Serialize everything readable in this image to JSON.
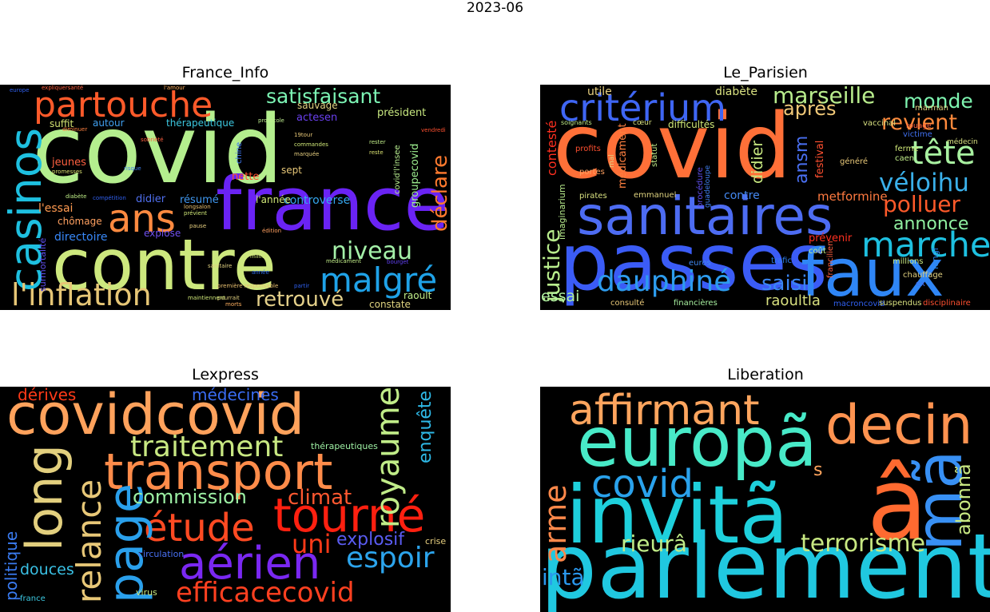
{
  "figure_title": "2023-06",
  "panels": [
    {
      "title": "France_Info",
      "words": [
        {
          "t": "covid",
          "c": "#b4ee8e"
        },
        {
          "t": "contre",
          "c": "#cde87e"
        },
        {
          "t": "france",
          "c": "#6a23f4"
        },
        {
          "t": "partouche",
          "c": "#ff5a2a"
        },
        {
          "t": "casinos",
          "c": "#1ec0e0"
        },
        {
          "t": "ans",
          "c": "#ff8a40"
        },
        {
          "t": "l'inflation",
          "c": "#e6c676"
        },
        {
          "t": "malgré",
          "c": "#1fa2e8"
        },
        {
          "t": "satisfaisant",
          "c": "#7cf4b4"
        },
        {
          "t": "niveau",
          "c": "#a4f0a8"
        },
        {
          "t": "retrouvé",
          "c": "#e4d08a"
        },
        {
          "t": "déclare",
          "c": "#ff7a2e"
        },
        {
          "t": "l'essai",
          "c": "#ff9a50"
        },
        {
          "t": "directoire",
          "c": "#3888f8"
        },
        {
          "t": "surmortalité",
          "c": "#6050f0"
        },
        {
          "t": "groupecovid",
          "c": "#9ef090"
        },
        {
          "t": "président",
          "c": "#c8e880"
        },
        {
          "t": "controverse",
          "c": "#36a8f0"
        },
        {
          "t": "chômage",
          "c": "#ffa060"
        },
        {
          "t": "jeunes",
          "c": "#ff6040"
        },
        {
          "t": "suffit",
          "c": "#d0e070"
        },
        {
          "t": "autour",
          "c": "#40a0f0"
        },
        {
          "t": "thérapeutique",
          "c": "#3cc8e0"
        },
        {
          "t": "actesen",
          "c": "#6a40f0"
        },
        {
          "t": "sauvage",
          "c": "#e0d080"
        },
        {
          "t": "nette",
          "c": "#ff5030"
        },
        {
          "t": "sept",
          "c": "#e8c878"
        },
        {
          "t": "résumé",
          "c": "#4098f0"
        },
        {
          "t": "didier",
          "c": "#5070f0"
        },
        {
          "t": "l'année",
          "c": "#d0e878"
        },
        {
          "t": "covid'l'insee",
          "c": "#b8ee90"
        },
        {
          "t": "chine",
          "c": "#4078f0"
        },
        {
          "t": "raoult",
          "c": "#c0ec88"
        },
        {
          "t": "constate",
          "c": "#e0d480"
        },
        {
          "t": "explose",
          "c": "#7050f0"
        },
        {
          "t": "europe",
          "c": "#3060f0"
        },
        {
          "t": "expliquersanté",
          "c": "#ff6040"
        },
        {
          "t": "l'amour",
          "c": "#ffb060"
        },
        {
          "t": "protocole",
          "c": "#c0f090"
        },
        {
          "t": "19tour",
          "c": "#e8c878"
        },
        {
          "t": "commandes",
          "c": "#d0e878"
        },
        {
          "t": "marquée",
          "c": "#e8d080"
        },
        {
          "t": "promesses",
          "c": "#d8e070"
        },
        {
          "t": "risque",
          "c": "#4080f0"
        },
        {
          "t": "diminuer",
          "c": "#ff8040"
        },
        {
          "t": "diabète",
          "c": "#c0f088"
        },
        {
          "t": "compétition",
          "c": "#3060f0"
        },
        {
          "t": "longsalon",
          "c": "#e8c070"
        },
        {
          "t": "prévient",
          "c": "#d0e878"
        },
        {
          "t": "pause",
          "c": "#e8d080"
        },
        {
          "t": "édition",
          "c": "#ffa060"
        },
        {
          "t": "millier",
          "c": "#d0e878"
        },
        {
          "t": "médicament",
          "c": "#c0ec88"
        },
        {
          "t": "bourget",
          "c": "#6040f0"
        },
        {
          "t": "année",
          "c": "#3070f0"
        },
        {
          "t": "sanitaire",
          "c": "#e0d080"
        },
        {
          "t": "première responsable",
          "c": "#e8c070"
        },
        {
          "t": "partir",
          "c": "#3060f0"
        },
        {
          "t": "pourrait",
          "c": "#e0d080"
        },
        {
          "t": "morts",
          "c": "#ffb060"
        },
        {
          "t": "sobriété",
          "c": "#ff6040"
        },
        {
          "t": "maintiennent",
          "c": "#d0e878"
        },
        {
          "t": "rester",
          "c": "#c0ec88"
        },
        {
          "t": "vendredi",
          "c": "#ff5030"
        },
        {
          "t": "reste",
          "c": "#d8e070"
        }
      ]
    },
    {
      "title": "Le_Parisien",
      "words": [
        {
          "t": "covid",
          "c": "#ff7038"
        },
        {
          "t": "passes",
          "c": "#3b5cf6"
        },
        {
          "t": "sanitaires",
          "c": "#4d6cf2"
        },
        {
          "t": "faux",
          "c": "#2f86f6"
        },
        {
          "t": "critérium",
          "c": "#3f66f4"
        },
        {
          "t": "dauphiné",
          "c": "#2d9cee"
        },
        {
          "t": "marche",
          "c": "#1ec0e0"
        },
        {
          "t": "tête",
          "c": "#a8f0a0"
        },
        {
          "t": "véloihu",
          "c": "#3ab0ea"
        },
        {
          "t": "polluer",
          "c": "#ff5a2a"
        },
        {
          "t": "revient",
          "c": "#ff8a3c"
        },
        {
          "t": "monde",
          "c": "#7ef4b0"
        },
        {
          "t": "marseille",
          "c": "#b8ec8c"
        },
        {
          "t": "justice",
          "c": "#b8ec8c"
        },
        {
          "t": "annonce",
          "c": "#90f0a0"
        },
        {
          "t": "ansm",
          "c": "#4a70f2"
        },
        {
          "t": "après",
          "c": "#f0c878"
        },
        {
          "t": "didier",
          "c": "#c8e880"
        },
        {
          "t": "saisi",
          "c": "#3a86f4"
        },
        {
          "t": "raoultla",
          "c": "#d8e080"
        },
        {
          "t": "essai",
          "c": "#b0f0a0"
        },
        {
          "t": "contesté",
          "c": "#ff3020"
        },
        {
          "t": "utile",
          "c": "#e8d080"
        },
        {
          "t": "diabète",
          "c": "#d8e080"
        },
        {
          "t": "metformine",
          "c": "#ff7a40"
        },
        {
          "t": "contre",
          "c": "#4488f0"
        },
        {
          "t": "festival",
          "c": "#ff5030"
        },
        {
          "t": "médicament",
          "c": "#ff8040"
        },
        {
          "t": "prévenir",
          "c": "#ff3020"
        },
        {
          "t": "difficultés",
          "c": "#d0e878"
        },
        {
          "t": "longl",
          "c": "#2c8af0"
        },
        {
          "t": "consulté",
          "c": "#e8c878"
        },
        {
          "t": "financières",
          "c": "#a8f0a0"
        },
        {
          "t": "macroncovid",
          "c": "#3060f0"
        },
        {
          "t": "suspendus",
          "c": "#d8e080"
        },
        {
          "t": "disciplinaire",
          "c": "#ff5030"
        },
        {
          "t": "imaginarium",
          "c": "#b8ec8c"
        },
        {
          "t": "pirates",
          "c": "#d8e080"
        },
        {
          "t": "emmanuel",
          "c": "#e0d480"
        },
        {
          "t": "euros",
          "c": "#4088f0"
        },
        {
          "t": "trafic",
          "c": "#3080f0"
        },
        {
          "t": "coût",
          "c": "#c0ec88"
        },
        {
          "t": "millions",
          "c": "#c8e880"
        },
        {
          "t": "chauffage",
          "c": "#e0d080"
        },
        {
          "t": "procédure",
          "c": "#6050f0"
        },
        {
          "t": "francilien",
          "c": "#ff6040"
        },
        {
          "t": "statut",
          "c": "#c0ec88"
        },
        {
          "t": "portes",
          "c": "#ffa060"
        },
        {
          "t": "profits",
          "c": "#ff5030"
        },
        {
          "t": "vaccinal",
          "c": "#d8e080"
        },
        {
          "t": "victime",
          "c": "#4070f0"
        },
        {
          "t": "soignants",
          "c": "#c0ec88"
        },
        {
          "t": "médecin",
          "c": "#d8e080"
        },
        {
          "t": "caen",
          "c": "#c0ec88"
        },
        {
          "t": "ferme",
          "c": "#d0e878"
        },
        {
          "t": "rouage",
          "c": "#ff6040"
        },
        {
          "t": "généré",
          "c": "#e8c878"
        },
        {
          "t": "guadeloupe",
          "c": "#4080f0"
        },
        {
          "t": "marman",
          "c": "#e0d080"
        },
        {
          "t": "ex",
          "c": "#4070f0"
        },
        {
          "t": "mal",
          "c": "#e0d080"
        },
        {
          "t": "cœur",
          "c": "#d8e080"
        }
      ]
    },
    {
      "title": "Lexpress",
      "words": [
        {
          "t": "covidcovid",
          "c": "#ffa25c"
        },
        {
          "t": "transport",
          "c": "#ff8c4a"
        },
        {
          "t": "tourné",
          "c": "#ff2010"
        },
        {
          "t": "aérien",
          "c": "#7a28f2"
        },
        {
          "t": "étude",
          "c": "#ff4a22"
        },
        {
          "t": "long",
          "c": "#e2cf7e"
        },
        {
          "t": "page",
          "c": "#2aa0ec"
        },
        {
          "t": "relance",
          "c": "#e8c878"
        },
        {
          "t": "traitement",
          "c": "#c8e882"
        },
        {
          "t": "efficacecovid",
          "c": "#ff4020"
        },
        {
          "t": "royaume",
          "c": "#c0ec88"
        },
        {
          "t": "espoir",
          "c": "#2ca4ec"
        },
        {
          "t": "commission",
          "c": "#9cf0a4"
        },
        {
          "t": "climat",
          "c": "#ff5830"
        },
        {
          "t": "uni",
          "c": "#ff3a18"
        },
        {
          "t": "explosif",
          "c": "#5a5cf2"
        },
        {
          "t": "médecines",
          "c": "#3a6cf2"
        },
        {
          "t": "dérives",
          "c": "#ff3a18"
        },
        {
          "t": "enquête",
          "c": "#2eb8e6"
        },
        {
          "t": "politique",
          "c": "#3a7cf2"
        },
        {
          "t": "douces",
          "c": "#3ac0e4"
        },
        {
          "t": "thérapeutiques",
          "c": "#9ef0a4"
        },
        {
          "t": "circulation",
          "c": "#4870f2"
        },
        {
          "t": "crise",
          "c": "#e8d080"
        },
        {
          "t": "virus",
          "c": "#c8e882"
        },
        {
          "t": "france",
          "c": "#3cc8e0"
        }
      ]
    },
    {
      "title": "Liberation",
      "words": [
        {
          "t": "parlement",
          "c": "#20c8e0"
        },
        {
          "t": "invitã",
          "c": "#1ed0dc"
        },
        {
          "t": "europã",
          "c": "#48eac8"
        },
        {
          "t": "â",
          "c": "#ff6a30"
        },
        {
          "t": "affirmant",
          "c": "#ffa55e"
        },
        {
          "t": "decin",
          "c": "#ff9350"
        },
        {
          "t": "mã",
          "c": "#3890f4"
        },
        {
          "t": "covid",
          "c": "#2aa2ec"
        },
        {
          "t": "arme",
          "c": "#ff884a"
        },
        {
          "t": "terrorisme",
          "c": "#c8e882"
        },
        {
          "t": "rieurâ",
          "c": "#c0ec88"
        },
        {
          "t": "abonnã",
          "c": "#c8e882"
        },
        {
          "t": "intã",
          "c": "#2a98ee"
        },
        {
          "t": "s",
          "c": "#ffa55e"
        }
      ]
    }
  ]
}
